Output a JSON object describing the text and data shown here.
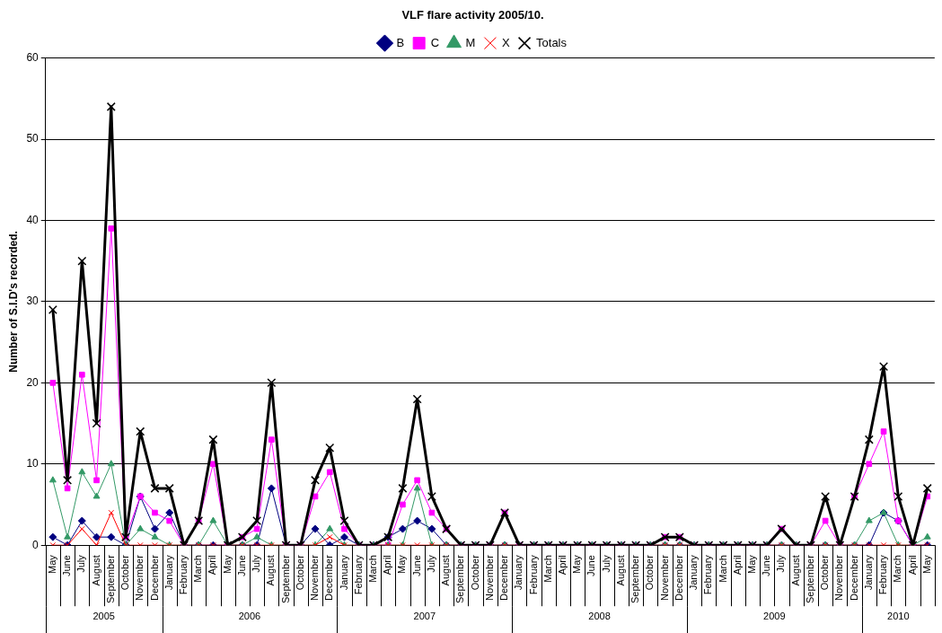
{
  "chart_data": {
    "type": "line",
    "title": "VLF flare activity 2005/10.",
    "ylabel": "Number of S.I.D's recorded.",
    "categories": [
      "May",
      "June",
      "July",
      "August",
      "September",
      "October",
      "November",
      "December",
      "January",
      "February",
      "March",
      "April",
      "May",
      "June",
      "July",
      "August",
      "September",
      "October",
      "November",
      "December",
      "January",
      "February",
      "March",
      "April",
      "May",
      "June",
      "July",
      "August",
      "September",
      "October",
      "November",
      "December",
      "January",
      "February",
      "March",
      "April",
      "May",
      "June",
      "July",
      "August",
      "September",
      "October",
      "November",
      "December",
      "January",
      "February",
      "March",
      "April",
      "May",
      "June",
      "July",
      "August",
      "September",
      "October",
      "November",
      "December",
      "January",
      "February",
      "March",
      "April",
      "May"
    ],
    "annotations": [
      "2005",
      "2006",
      "2007",
      "2008",
      "2009",
      "2010"
    ],
    "ylim": [
      0,
      60
    ],
    "yticks": [
      0,
      10,
      20,
      30,
      40,
      50,
      60
    ],
    "grid": "y",
    "legend": "top",
    "series": [
      {
        "name": "B",
        "color": "#000080",
        "marker": "diamond",
        "values": [
          1,
          0,
          3,
          1,
          1,
          0,
          6,
          2,
          4,
          0,
          0,
          0,
          0,
          0,
          0,
          7,
          0,
          0,
          2,
          0,
          1,
          0,
          0,
          1,
          2,
          3,
          2,
          0,
          0,
          0,
          0,
          0,
          0,
          0,
          0,
          0,
          0,
          0,
          0,
          0,
          0,
          0,
          0,
          0,
          0,
          0,
          0,
          0,
          0,
          0,
          0,
          0,
          0,
          0,
          0,
          0,
          0,
          4,
          3,
          0,
          0
        ]
      },
      {
        "name": "C",
        "color": "#ff00ff",
        "marker": "square",
        "values": [
          20,
          7,
          21,
          8,
          39,
          1,
          6,
          4,
          3,
          0,
          3,
          10,
          0,
          1,
          2,
          13,
          0,
          0,
          6,
          9,
          2,
          0,
          0,
          0,
          5,
          8,
          4,
          2,
          0,
          0,
          0,
          4,
          0,
          0,
          0,
          0,
          0,
          0,
          0,
          0,
          0,
          0,
          1,
          1,
          0,
          0,
          0,
          0,
          0,
          0,
          2,
          0,
          0,
          3,
          0,
          6,
          10,
          14,
          3,
          0,
          6
        ]
      },
      {
        "name": "M",
        "color": "#339966",
        "marker": "triangle",
        "values": [
          8,
          1,
          9,
          6,
          10,
          0,
          2,
          1,
          0,
          0,
          0,
          3,
          0,
          0,
          1,
          0,
          0,
          0,
          0,
          2,
          0,
          0,
          0,
          0,
          0,
          7,
          0,
          0,
          0,
          0,
          0,
          0,
          0,
          0,
          0,
          0,
          0,
          0,
          0,
          0,
          0,
          0,
          0,
          0,
          0,
          0,
          0,
          0,
          0,
          0,
          0,
          0,
          0,
          0,
          0,
          0,
          3,
          4,
          0,
          0,
          1
        ]
      },
      {
        "name": "X",
        "color": "#ff0000",
        "marker": "cross",
        "values": [
          0,
          0,
          2,
          0,
          4,
          0,
          0,
          0,
          0,
          0,
          0,
          0,
          0,
          0,
          0,
          0,
          0,
          0,
          0,
          1,
          0,
          0,
          0,
          0,
          0,
          0,
          0,
          0,
          0,
          0,
          0,
          0,
          0,
          0,
          0,
          0,
          0,
          0,
          0,
          0,
          0,
          0,
          0,
          0,
          0,
          0,
          0,
          0,
          0,
          0,
          0,
          0,
          0,
          0,
          0,
          0,
          0,
          0,
          0,
          0,
          0
        ]
      },
      {
        "name": "Totals",
        "color": "#000000",
        "marker": "cross",
        "values": [
          29,
          8,
          35,
          15,
          54,
          1,
          14,
          7,
          7,
          0,
          3,
          13,
          0,
          1,
          3,
          20,
          0,
          0,
          8,
          12,
          3,
          0,
          0,
          1,
          7,
          18,
          6,
          2,
          0,
          0,
          0,
          4,
          0,
          0,
          0,
          0,
          0,
          0,
          0,
          0,
          0,
          0,
          1,
          1,
          0,
          0,
          0,
          0,
          0,
          0,
          2,
          0,
          0,
          6,
          0,
          6,
          13,
          22,
          6,
          0,
          7
        ]
      }
    ]
  }
}
